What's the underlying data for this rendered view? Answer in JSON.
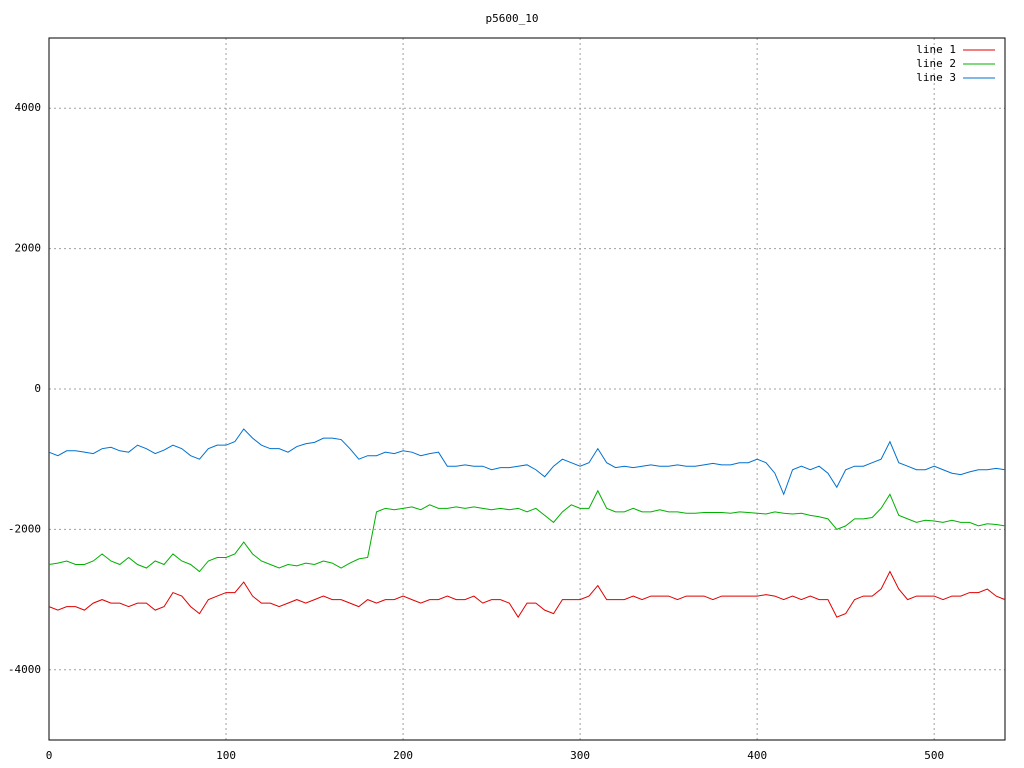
{
  "chart_data": {
    "type": "line",
    "title": "p5600_10",
    "x": [
      0,
      5,
      10,
      15,
      20,
      25,
      30,
      35,
      40,
      45,
      50,
      55,
      60,
      65,
      70,
      75,
      80,
      85,
      90,
      95,
      100,
      105,
      110,
      115,
      120,
      125,
      130,
      135,
      140,
      145,
      150,
      155,
      160,
      165,
      170,
      175,
      180,
      185,
      190,
      195,
      200,
      205,
      210,
      215,
      220,
      225,
      230,
      235,
      240,
      245,
      250,
      255,
      260,
      265,
      270,
      275,
      280,
      285,
      290,
      295,
      300,
      305,
      310,
      315,
      320,
      325,
      330,
      335,
      340,
      345,
      350,
      355,
      360,
      365,
      370,
      375,
      380,
      385,
      390,
      395,
      400,
      405,
      410,
      415,
      420,
      425,
      430,
      435,
      440,
      445,
      450,
      455,
      460,
      465,
      470,
      475,
      480,
      485,
      490,
      495,
      500,
      505,
      510,
      515,
      520,
      525,
      530,
      535,
      540
    ],
    "series": [
      {
        "name": "line 1",
        "color": "#e00000",
        "values": [
          -3100,
          -3150,
          -3100,
          -3100,
          -3150,
          -3050,
          -3000,
          -3050,
          -3050,
          -3100,
          -3050,
          -3050,
          -3150,
          -3100,
          -2900,
          -2950,
          -3100,
          -3200,
          -3000,
          -2950,
          -2900,
          -2900,
          -2750,
          -2950,
          -3050,
          -3050,
          -3100,
          -3050,
          -3000,
          -3050,
          -3000,
          -2950,
          -3000,
          -3000,
          -3050,
          -3100,
          -3000,
          -3050,
          -3000,
          -3000,
          -2950,
          -3000,
          -3050,
          -3000,
          -3000,
          -2950,
          -3000,
          -3000,
          -2950,
          -3050,
          -3000,
          -3000,
          -3050,
          -3250,
          -3050,
          -3050,
          -3150,
          -3200,
          -3000,
          -3000,
          -3000,
          -2950,
          -2800,
          -3000,
          -3000,
          -3000,
          -2950,
          -3000,
          -2950,
          -2950,
          -2950,
          -3000,
          -2950,
          -2950,
          -2950,
          -3000,
          -2950,
          -2950,
          -2950,
          -2950,
          -2950,
          -2930,
          -2950,
          -3000,
          -2950,
          -3000,
          -2950,
          -3000,
          -3000,
          -3250,
          -3200,
          -3000,
          -2950,
          -2950,
          -2850,
          -2600,
          -2850,
          -3000,
          -2950,
          -2950,
          -2950,
          -3000,
          -2950,
          -2950,
          -2900,
          -2900,
          -2850,
          -2950,
          -3000
        ]
      },
      {
        "name": "line 2",
        "color": "#00b000",
        "values": [
          -2500,
          -2480,
          -2450,
          -2500,
          -2500,
          -2450,
          -2350,
          -2450,
          -2500,
          -2400,
          -2500,
          -2550,
          -2450,
          -2500,
          -2350,
          -2450,
          -2500,
          -2600,
          -2450,
          -2400,
          -2400,
          -2350,
          -2180,
          -2350,
          -2450,
          -2500,
          -2550,
          -2500,
          -2520,
          -2480,
          -2500,
          -2450,
          -2480,
          -2550,
          -2480,
          -2420,
          -2400,
          -1750,
          -1700,
          -1720,
          -1700,
          -1680,
          -1720,
          -1650,
          -1700,
          -1700,
          -1680,
          -1700,
          -1680,
          -1700,
          -1720,
          -1700,
          -1720,
          -1700,
          -1750,
          -1700,
          -1800,
          -1900,
          -1750,
          -1650,
          -1700,
          -1700,
          -1450,
          -1700,
          -1750,
          -1750,
          -1700,
          -1750,
          -1750,
          -1720,
          -1750,
          -1750,
          -1770,
          -1770,
          -1760,
          -1760,
          -1760,
          -1770,
          -1750,
          -1760,
          -1770,
          -1780,
          -1750,
          -1770,
          -1780,
          -1770,
          -1800,
          -1820,
          -1850,
          -2000,
          -1950,
          -1850,
          -1850,
          -1830,
          -1700,
          -1500,
          -1800,
          -1850,
          -1900,
          -1870,
          -1880,
          -1900,
          -1870,
          -1900,
          -1900,
          -1950,
          -1920,
          -1930,
          -1950
        ]
      },
      {
        "name": "line 3",
        "color": "#0070d0",
        "values": [
          -900,
          -950,
          -880,
          -880,
          -900,
          -920,
          -850,
          -830,
          -880,
          -900,
          -800,
          -850,
          -920,
          -870,
          -800,
          -850,
          -950,
          -1000,
          -850,
          -800,
          -800,
          -750,
          -570,
          -700,
          -800,
          -850,
          -850,
          -900,
          -820,
          -780,
          -760,
          -700,
          -700,
          -720,
          -850,
          -1000,
          -950,
          -950,
          -900,
          -920,
          -880,
          -900,
          -950,
          -920,
          -900,
          -1100,
          -1100,
          -1080,
          -1100,
          -1100,
          -1150,
          -1120,
          -1120,
          -1100,
          -1080,
          -1150,
          -1250,
          -1100,
          -1000,
          -1050,
          -1100,
          -1050,
          -850,
          -1050,
          -1120,
          -1100,
          -1120,
          -1100,
          -1080,
          -1100,
          -1100,
          -1080,
          -1100,
          -1100,
          -1080,
          -1060,
          -1080,
          -1080,
          -1050,
          -1050,
          -1000,
          -1050,
          -1200,
          -1500,
          -1150,
          -1100,
          -1150,
          -1100,
          -1200,
          -1400,
          -1150,
          -1100,
          -1100,
          -1050,
          -1000,
          -750,
          -1050,
          -1100,
          -1150,
          -1150,
          -1100,
          -1150,
          -1200,
          -1220,
          -1180,
          -1150,
          -1150,
          -1130,
          -1150
        ]
      }
    ],
    "xlim": [
      0,
      540
    ],
    "xticks": [
      0,
      100,
      200,
      300,
      400,
      500
    ],
    "ylim": [
      -5000,
      5000
    ],
    "yticks": [
      -4000,
      -2000,
      0,
      2000,
      4000
    ],
    "grid": true,
    "legend": "top-right"
  }
}
